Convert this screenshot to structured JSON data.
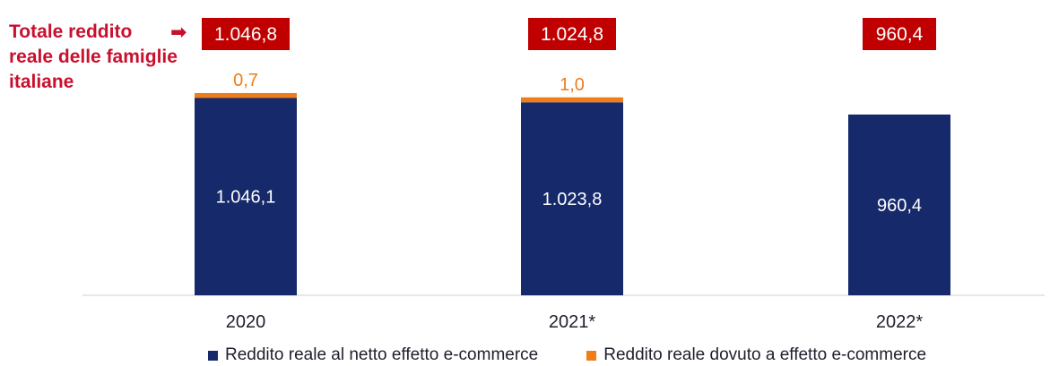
{
  "callout": {
    "text": "Totale reddito reale delle famiglie italiane",
    "arrow": "➡"
  },
  "colors": {
    "base": "#16296b",
    "ecommerce": "#ef7d1a",
    "total_box": "#c00000",
    "callout": "#c8102e"
  },
  "chart_data": {
    "type": "bar",
    "stacked": true,
    "categories": [
      "2020",
      "2021*",
      "2022*"
    ],
    "series": [
      {
        "name": "Reddito reale al netto effetto e-commerce",
        "values": [
          1046.1,
          1023.8,
          960.4
        ],
        "labels": [
          "1.046,1",
          "1.023,8",
          "960,4"
        ]
      },
      {
        "name": "Reddito reale dovuto a effetto e-commerce",
        "values": [
          0.7,
          1.0,
          0.0
        ],
        "labels": [
          "0,7",
          "1,0",
          ""
        ]
      }
    ],
    "totals": [
      1046.8,
      1024.8,
      960.4
    ],
    "total_labels": [
      "1.046,8",
      "1.024,8",
      "960,4"
    ],
    "legend_position": "bottom",
    "grid": false
  }
}
